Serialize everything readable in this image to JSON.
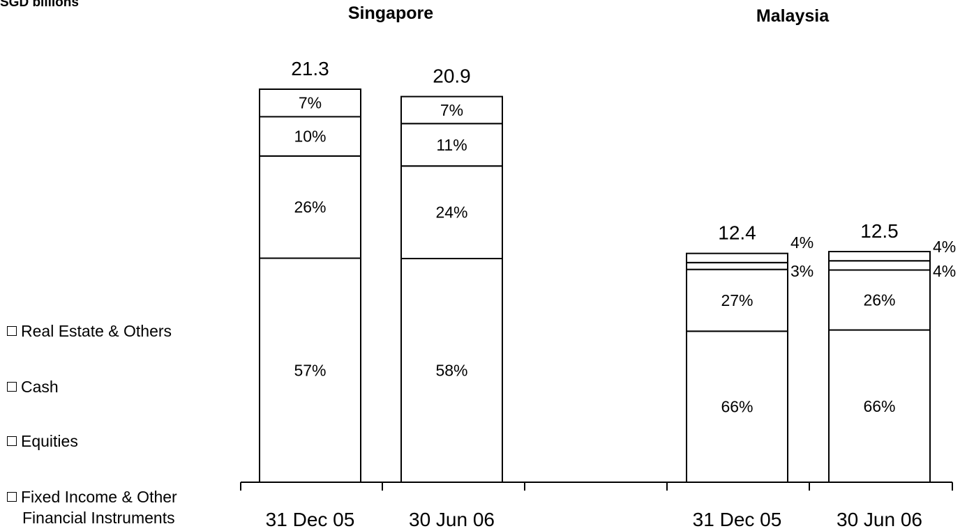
{
  "chart_data": {
    "type": "bar",
    "stacked": true,
    "unit_label": "SGD billions",
    "groups": [
      {
        "title": "Singapore",
        "categories": [
          "31 Dec 05",
          "30 Jun 06"
        ],
        "totals": [
          "21.3",
          "20.9"
        ],
        "total_values": [
          21.3,
          20.9
        ]
      },
      {
        "title": "Malaysia",
        "categories": [
          "31 Dec 05",
          "30 Jun 06"
        ],
        "totals": [
          "12.4",
          "12.5"
        ],
        "total_values": [
          12.4,
          12.5
        ]
      }
    ],
    "series": [
      {
        "name": "Fixed Income & Other Financial Instruments",
        "values": [
          57,
          58,
          66,
          66
        ],
        "labels": [
          "57%",
          "58%",
          "66%",
          "66%"
        ]
      },
      {
        "name": "Equities",
        "values": [
          26,
          24,
          27,
          26
        ],
        "labels": [
          "26%",
          "24%",
          "27%",
          "26%"
        ]
      },
      {
        "name": "Cash",
        "values": [
          10,
          11,
          3,
          4
        ],
        "labels": [
          "10%",
          "11%",
          "3%",
          "4%"
        ]
      },
      {
        "name": "Real Estate & Others",
        "values": [
          7,
          7,
          4,
          4
        ],
        "labels": [
          "7%",
          "7%",
          "4%",
          "4%"
        ]
      }
    ],
    "legend": {
      "position": "left",
      "items": [
        "Real Estate & Others",
        "Cash",
        "Equities",
        "Fixed Income & Other",
        "Financial Instruments"
      ]
    },
    "colors": {
      "fill": "#ffffff",
      "stroke": "#000000"
    }
  }
}
